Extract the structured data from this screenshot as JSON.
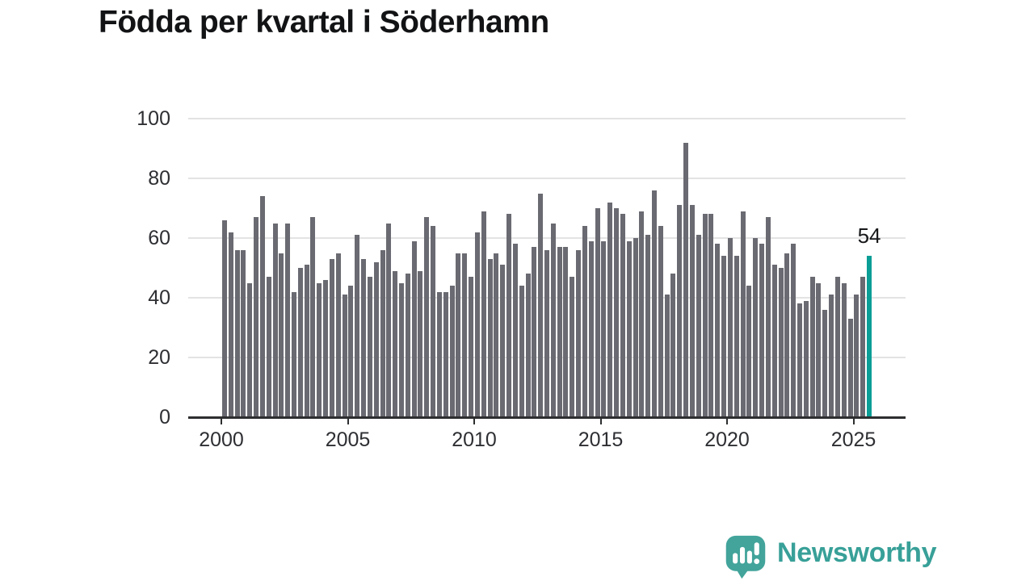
{
  "title": "Födda per kvartal i Söderhamn",
  "chart_data": {
    "type": "bar",
    "title": "Födda per kvartal i Söderhamn",
    "frequency": "quarterly",
    "x_start": "2000 Q1",
    "x_end": "2025 Q3",
    "values": [
      66,
      62,
      56,
      56,
      45,
      67,
      74,
      47,
      65,
      55,
      65,
      42,
      50,
      51,
      67,
      45,
      46,
      53,
      55,
      41,
      44,
      61,
      53,
      47,
      52,
      56,
      65,
      49,
      45,
      48,
      59,
      49,
      67,
      64,
      42,
      42,
      44,
      55,
      55,
      47,
      62,
      69,
      53,
      55,
      51,
      68,
      58,
      44,
      48,
      57,
      75,
      56,
      65,
      57,
      57,
      47,
      56,
      64,
      59,
      70,
      59,
      72,
      70,
      68,
      59,
      60,
      69,
      61,
      76,
      64,
      41,
      48,
      71,
      92,
      71,
      61,
      68,
      68,
      58,
      54,
      60,
      54,
      69,
      44,
      60,
      58,
      67,
      51,
      50,
      55,
      58,
      38,
      39,
      47,
      45,
      36,
      41,
      47,
      45,
      33,
      41,
      47,
      54
    ],
    "highlight_last_bar": true,
    "highlight_value": 54,
    "annotation_label": "54",
    "x_ticks": [
      2000,
      2005,
      2010,
      2015,
      2020,
      2025
    ],
    "x_tick_labels": [
      "2000",
      "2005",
      "2010",
      "2015",
      "2020",
      "2025"
    ],
    "y_ticks": [
      100,
      80,
      60,
      40,
      20,
      0
    ],
    "y_tick_labels": [
      "100",
      "80",
      "60",
      "40",
      "20",
      "0"
    ],
    "ylim": [
      0,
      100
    ],
    "grid": "horizontal",
    "legend": "none",
    "colors": {
      "bar": "#6a6a72",
      "highlight": "#0a9e96",
      "gridline": "#e3e3e4",
      "axis": "#2d2e30",
      "tick_text": "#2e2f33",
      "title_text": "#121315"
    }
  },
  "branding": {
    "logo_text": "Newsworthy",
    "logo_color": "#38a098",
    "logo_icon": "newsworthy-speech-bubble-bar-chart-icon"
  }
}
